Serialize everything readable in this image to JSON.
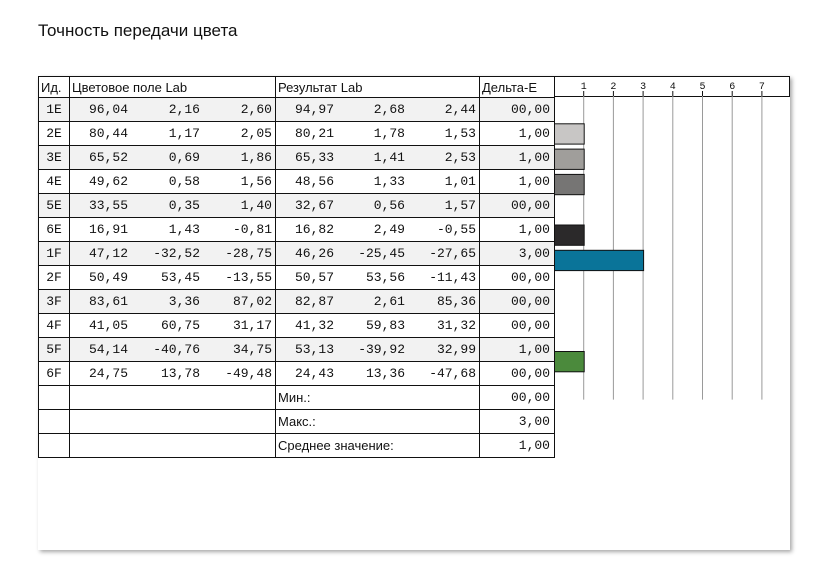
{
  "title": "Точность передачи цвета",
  "columns": {
    "id": "Ид.",
    "lab": "Цветовое поле Lab",
    "result": "Результат Lab",
    "delta": "Дельта-E"
  },
  "scale": [
    "1",
    "2",
    "3",
    "4",
    "5",
    "6",
    "7"
  ],
  "rows": [
    {
      "id": "1E",
      "l": "96,04",
      "a": "2,16",
      "b": "2,60",
      "rl": "94,97",
      "ra": "2,68",
      "rb": "2,44",
      "de": "00,00",
      "de_value": 0,
      "swatch": "#ffffff"
    },
    {
      "id": "2E",
      "l": "80,44",
      "a": "1,17",
      "b": "2,05",
      "rl": "80,21",
      "ra": "1,78",
      "rb": "1,53",
      "de": "1,00",
      "de_value": 1,
      "swatch": "#c8c6c5"
    },
    {
      "id": "3E",
      "l": "65,52",
      "a": "0,69",
      "b": "1,86",
      "rl": "65,33",
      "ra": "1,41",
      "rb": "2,53",
      "de": "1,00",
      "de_value": 1,
      "swatch": "#a09e9b"
    },
    {
      "id": "4E",
      "l": "49,62",
      "a": "0,58",
      "b": "1,56",
      "rl": "48,56",
      "ra": "1,33",
      "rb": "1,01",
      "de": "1,00",
      "de_value": 1,
      "swatch": "#767574"
    },
    {
      "id": "5E",
      "l": "33,55",
      "a": "0,35",
      "b": "1,40",
      "rl": "32,67",
      "ra": "0,56",
      "rb": "1,57",
      "de": "00,00",
      "de_value": 0,
      "swatch": "#4e4d4c"
    },
    {
      "id": "6E",
      "l": "16,91",
      "a": "1,43",
      "b": "-0,81",
      "rl": "16,82",
      "ra": "2,49",
      "rb": "-0,55",
      "de": "1,00",
      "de_value": 1,
      "swatch": "#2b292a"
    },
    {
      "id": "1F",
      "l": "47,12",
      "a": "-32,52",
      "b": "-28,75",
      "rl": "46,26",
      "ra": "-25,45",
      "rb": "-27,65",
      "de": "3,00",
      "de_value": 3,
      "swatch": "#0a7499"
    },
    {
      "id": "2F",
      "l": "50,49",
      "a": "53,45",
      "b": "-13,55",
      "rl": "50,57",
      "ra": "53,56",
      "rb": "-11,43",
      "de": "00,00",
      "de_value": 0,
      "swatch": "#c8327a"
    },
    {
      "id": "3F",
      "l": "83,61",
      "a": "3,36",
      "b": "87,02",
      "rl": "82,87",
      "ra": "2,61",
      "rb": "85,36",
      "de": "00,00",
      "de_value": 0,
      "swatch": "#e8cc10"
    },
    {
      "id": "4F",
      "l": "41,05",
      "a": "60,75",
      "b": "31,17",
      "rl": "41,32",
      "ra": "59,83",
      "rb": "31,32",
      "de": "00,00",
      "de_value": 0,
      "swatch": "#b72a2a"
    },
    {
      "id": "5F",
      "l": "54,14",
      "a": "-40,76",
      "b": "34,75",
      "rl": "53,13",
      "ra": "-39,92",
      "rb": "32,99",
      "de": "1,00",
      "de_value": 1,
      "swatch": "#4b8a3c"
    },
    {
      "id": "6F",
      "l": "24,75",
      "a": "13,78",
      "b": "-49,48",
      "rl": "24,43",
      "ra": "13,36",
      "rb": "-47,68",
      "de": "00,00",
      "de_value": 0,
      "swatch": "#1e3c8a"
    }
  ],
  "summary": [
    {
      "label": "Мин.:",
      "value": "00,00"
    },
    {
      "label": "Макс.:",
      "value": "3,00"
    },
    {
      "label": "Среднее значение:",
      "value": "1,00"
    }
  ]
}
